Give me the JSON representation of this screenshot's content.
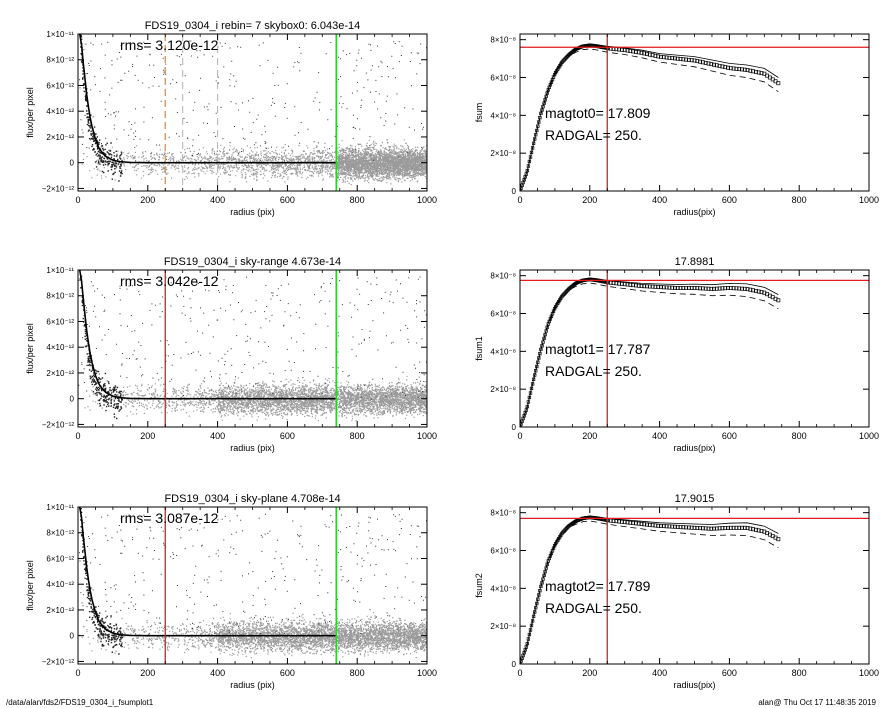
{
  "footer": {
    "path": "/data/alan/fds2/FDS19_0304_i_fsumplot1",
    "stamp": "alan@  Thu Oct 17 11:48:35 2019"
  },
  "colors": {
    "cloud": "#9a9a9a",
    "profile": "#000000",
    "red_line": "#e41a1c",
    "green_line": "#33cc33",
    "orange_dash": "#f08a2c",
    "gray_dash": "#b0b0b0"
  },
  "chart_data": [
    {
      "id": "flux-top",
      "type": "scatter",
      "title": "FDS19_0304_i rebin= 7    skybox0:  6.043e-14",
      "annotation": "rms= 3.120e-12",
      "xlabel": "radius (pix)",
      "ylabel": "flux/per pixel",
      "xlim": [
        0,
        1000
      ],
      "ylim": [
        -2.2e-12,
        1e-11
      ],
      "xticks": [
        0,
        200,
        400,
        600,
        800,
        1000
      ],
      "xtick_labels": [
        "0",
        "200",
        "400",
        "600",
        "800",
        "1000"
      ],
      "yticks": [
        -2e-12,
        0,
        2e-12,
        4e-12,
        6e-12,
        8e-12,
        1e-11
      ],
      "ytick_labels": [
        "−2×10⁻¹²",
        "0",
        "2×10⁻¹²",
        "4×10⁻¹²",
        "6×10⁻¹²",
        "8×10⁻¹²",
        "1×10⁻¹¹"
      ],
      "cloud_xmax": 1000,
      "dense_from": 740,
      "vlines": [
        {
          "x": 250,
          "style": "dash-orange"
        },
        {
          "x": 300,
          "style": "dash-gray"
        },
        {
          "x": 400,
          "style": "dash-gray"
        },
        {
          "x": 740,
          "style": "green"
        }
      ],
      "hlines": [],
      "profile": {
        "x": [
          5,
          10,
          15,
          20,
          25,
          30,
          35,
          40,
          50,
          60,
          70,
          80,
          100,
          120,
          150,
          200,
          250,
          300,
          400,
          500,
          600,
          740
        ],
        "y": [
          1e-11,
          9.2e-12,
          7.8e-12,
          6.5e-12,
          5.3e-12,
          4.3e-12,
          3.5e-12,
          2.8e-12,
          1.8e-12,
          1.15e-12,
          7.5e-13,
          4.8e-13,
          2e-13,
          8e-14,
          2e-14,
          0,
          0,
          0,
          0,
          0,
          0,
          0
        ]
      }
    },
    {
      "id": "flux-mid",
      "type": "scatter",
      "title": "FDS19_0304_i sky-range  4.673e-14",
      "annotation": "rms= 3.042e-12",
      "xlabel": "radius (pix)",
      "ylabel": "flux/per pixel",
      "xlim": [
        0,
        1000
      ],
      "ylim": [
        -2.2e-12,
        1e-11
      ],
      "xticks": [
        0,
        200,
        400,
        600,
        800,
        1000
      ],
      "xtick_labels": [
        "0",
        "200",
        "400",
        "600",
        "800",
        "1000"
      ],
      "yticks": [
        -2e-12,
        0,
        2e-12,
        4e-12,
        6e-12,
        8e-12,
        1e-11
      ],
      "ytick_labels": [
        "−2×10⁻¹²",
        "0",
        "2×10⁻¹²",
        "4×10⁻¹²",
        "6×10⁻¹²",
        "8×10⁻¹²",
        "1×10⁻¹¹"
      ],
      "cloud_xmax": 1000,
      "dense_from": 400,
      "vlines": [
        {
          "x": 250,
          "style": "red"
        },
        {
          "x": 740,
          "style": "green"
        }
      ],
      "hlines": [],
      "profile": {
        "x": [
          5,
          10,
          15,
          20,
          25,
          30,
          35,
          40,
          50,
          60,
          70,
          80,
          100,
          120,
          150,
          200,
          250,
          300,
          400,
          500,
          600,
          740
        ],
        "y": [
          1e-11,
          9.2e-12,
          7.8e-12,
          6.5e-12,
          5.3e-12,
          4.3e-12,
          3.5e-12,
          2.8e-12,
          1.8e-12,
          1.15e-12,
          7.5e-13,
          4.8e-13,
          2e-13,
          8e-14,
          2e-14,
          0,
          0,
          0,
          0,
          0,
          0,
          0
        ]
      }
    },
    {
      "id": "flux-bot",
      "type": "scatter",
      "title": "FDS19_0304_i sky-plane  4.708e-14",
      "annotation": "rms= 3.087e-12",
      "xlabel": "radius (pix)",
      "ylabel": "flux/per pixel",
      "xlim": [
        0,
        1000
      ],
      "ylim": [
        -2.2e-12,
        1e-11
      ],
      "xticks": [
        0,
        200,
        400,
        600,
        800,
        1000
      ],
      "xtick_labels": [
        "0",
        "200",
        "400",
        "600",
        "800",
        "1000"
      ],
      "yticks": [
        -2e-12,
        0,
        2e-12,
        4e-12,
        6e-12,
        8e-12,
        1e-11
      ],
      "ytick_labels": [
        "−2×10⁻¹²",
        "0",
        "2×10⁻¹²",
        "4×10⁻¹²",
        "6×10⁻¹²",
        "8×10⁻¹²",
        "1×10⁻¹¹"
      ],
      "cloud_xmax": 1000,
      "dense_from": 400,
      "vlines": [
        {
          "x": 250,
          "style": "red"
        },
        {
          "x": 740,
          "style": "green"
        }
      ],
      "hlines": [],
      "profile": {
        "x": [
          5,
          10,
          15,
          20,
          25,
          30,
          35,
          40,
          50,
          60,
          70,
          80,
          100,
          120,
          150,
          200,
          250,
          300,
          400,
          500,
          600,
          740
        ],
        "y": [
          1e-11,
          9.2e-12,
          7.8e-12,
          6.5e-12,
          5.3e-12,
          4.3e-12,
          3.5e-12,
          2.8e-12,
          1.8e-12,
          1.15e-12,
          7.5e-13,
          4.8e-13,
          2e-13,
          8e-14,
          2e-14,
          0,
          0,
          0,
          0,
          0,
          0,
          0
        ]
      }
    },
    {
      "id": "fsum-top",
      "type": "scatter",
      "title": "",
      "annotation_lines": [
        "magtot0=  17.809",
        "RADGAL=    250."
      ],
      "xlabel": "radius(pix)",
      "ylabel": "fsum",
      "xlim": [
        0,
        1000
      ],
      "ylim": [
        0,
        8.3e-08
      ],
      "xticks": [
        0,
        200,
        400,
        600,
        800,
        1000
      ],
      "xtick_labels": [
        "0",
        "200",
        "400",
        "600",
        "800",
        "1000"
      ],
      "yticks": [
        0,
        2e-08,
        4e-08,
        6e-08,
        8e-08
      ],
      "ytick_labels": [
        "0",
        "2×10⁻⁸",
        "4×10⁻⁸",
        "6×10⁻⁸",
        "8×10⁻⁸"
      ],
      "vlines": [
        {
          "x": 250,
          "style": "red"
        }
      ],
      "hlines": [
        {
          "y": 7.6e-08,
          "style": "red"
        }
      ],
      "curve": {
        "x": [
          0,
          20,
          40,
          60,
          80,
          100,
          120,
          140,
          160,
          180,
          200,
          220,
          250,
          300,
          350,
          400,
          450,
          500,
          550,
          600,
          650,
          700,
          740
        ],
        "y": [
          0,
          1e-08,
          2.6e-08,
          4.1e-08,
          5.3e-08,
          6.2e-08,
          6.8e-08,
          7.2e-08,
          7.5e-08,
          7.65e-08,
          7.7e-08,
          7.65e-08,
          7.55e-08,
          7.45e-08,
          7.3e-08,
          7.1e-08,
          7e-08,
          6.9e-08,
          6.7e-08,
          6.5e-08,
          6.4e-08,
          6.2e-08,
          5.7e-08
        ]
      },
      "band_offset": 3e-09
    },
    {
      "id": "fsum-mid",
      "type": "scatter",
      "title": "17.8981",
      "annotation_lines": [
        "magtot1=  17.787",
        "RADGAL=    250."
      ],
      "xlabel": "radius(pix)",
      "ylabel": "fsum1",
      "xlim": [
        0,
        1000
      ],
      "ylim": [
        0,
        8.3e-08
      ],
      "xticks": [
        0,
        200,
        400,
        600,
        800,
        1000
      ],
      "xtick_labels": [
        "0",
        "200",
        "400",
        "600",
        "800",
        "1000"
      ],
      "yticks": [
        0,
        2e-08,
        4e-08,
        6e-08,
        8e-08
      ],
      "ytick_labels": [
        "0",
        "2×10⁻⁸",
        "4×10⁻⁸",
        "6×10⁻⁸",
        "8×10⁻⁸"
      ],
      "vlines": [
        {
          "x": 250,
          "style": "red"
        }
      ],
      "hlines": [
        {
          "y": 7.75e-08,
          "style": "red"
        }
      ],
      "curve": {
        "x": [
          0,
          20,
          40,
          60,
          80,
          100,
          120,
          140,
          160,
          180,
          200,
          220,
          250,
          300,
          350,
          400,
          450,
          500,
          550,
          600,
          650,
          700,
          740
        ],
        "y": [
          0,
          1e-08,
          2.6e-08,
          4.1e-08,
          5.4e-08,
          6.3e-08,
          6.9e-08,
          7.3e-08,
          7.6e-08,
          7.75e-08,
          7.8e-08,
          7.75e-08,
          7.65e-08,
          7.55e-08,
          7.45e-08,
          7.4e-08,
          7.35e-08,
          7.35e-08,
          7.3e-08,
          7.35e-08,
          7.3e-08,
          7.1e-08,
          6.7e-08
        ]
      },
      "band_offset": 3e-09
    },
    {
      "id": "fsum-bot",
      "type": "scatter",
      "title": "17.9015",
      "annotation_lines": [
        "magtot2=  17.789",
        "RADGAL=    250."
      ],
      "xlabel": "radius(pix)",
      "ylabel": "fsum2",
      "xlim": [
        0,
        1000
      ],
      "ylim": [
        0,
        8.3e-08
      ],
      "xticks": [
        0,
        200,
        400,
        600,
        800,
        1000
      ],
      "xtick_labels": [
        "0",
        "200",
        "400",
        "600",
        "800",
        "1000"
      ],
      "yticks": [
        0,
        2e-08,
        4e-08,
        6e-08,
        8e-08
      ],
      "ytick_labels": [
        "0",
        "2×10⁻⁸",
        "4×10⁻⁸",
        "6×10⁻⁸",
        "8×10⁻⁸"
      ],
      "vlines": [
        {
          "x": 250,
          "style": "red"
        }
      ],
      "hlines": [
        {
          "y": 7.7e-08,
          "style": "red"
        }
      ],
      "curve": {
        "x": [
          0,
          20,
          40,
          60,
          80,
          100,
          120,
          140,
          160,
          180,
          200,
          220,
          250,
          300,
          350,
          400,
          450,
          500,
          550,
          600,
          650,
          700,
          740
        ],
        "y": [
          0,
          1e-08,
          2.6e-08,
          4.1e-08,
          5.4e-08,
          6.3e-08,
          6.9e-08,
          7.3e-08,
          7.55e-08,
          7.7e-08,
          7.75e-08,
          7.7e-08,
          7.6e-08,
          7.5e-08,
          7.4e-08,
          7.3e-08,
          7.25e-08,
          7.2e-08,
          7.15e-08,
          7.2e-08,
          7.2e-08,
          7e-08,
          6.6e-08
        ]
      },
      "band_offset": 3e-09
    }
  ]
}
